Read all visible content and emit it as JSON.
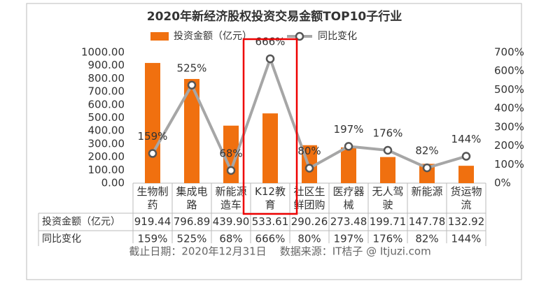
{
  "chart_data": {
    "type": "bar_line",
    "title": "2020年新经济股权投资交易金额TOP10子行业",
    "categories": [
      [
        "生物制",
        "药"
      ],
      [
        "集成电",
        "路"
      ],
      [
        "新能源",
        "造车"
      ],
      [
        "K12教",
        "育"
      ],
      [
        "社区生",
        "鲜团购"
      ],
      [
        "医疗器",
        "械"
      ],
      [
        "无人驾",
        "驶"
      ],
      [
        "新能源"
      ],
      [
        "货运物",
        "流"
      ]
    ],
    "series": [
      {
        "name": "投资金额（亿元）",
        "type": "bar",
        "color": "#f0700f",
        "values": [
          919.44,
          796.89,
          439.9,
          533.61,
          290.26,
          273.48,
          199.71,
          147.78,
          132.92
        ],
        "value_labels": [
          "919.44",
          "796.89",
          "439.90",
          "533.61",
          "290.26",
          "273.48",
          "199.71",
          "147.78",
          "132.92"
        ]
      },
      {
        "name": "同比变化",
        "type": "line",
        "color": "#a6a6a6",
        "axis": "y2",
        "values": [
          159,
          525,
          68,
          666,
          80,
          197,
          176,
          82,
          144
        ],
        "value_labels": [
          "159%",
          "525%",
          "68%",
          "666%",
          "80%",
          "197%",
          "176%",
          "82%",
          "144%"
        ]
      }
    ],
    "ylim": [
      0,
      1000
    ],
    "yticks": [
      {
        "value": 0,
        "label": "0.00"
      },
      {
        "value": 100,
        "label": "100.00"
      },
      {
        "value": 200,
        "label": "200.00"
      },
      {
        "value": 300,
        "label": "300.00"
      },
      {
        "value": 400,
        "label": "400.00"
      },
      {
        "value": 500,
        "label": "500.00"
      },
      {
        "value": 600,
        "label": "600.00"
      },
      {
        "value": 700,
        "label": "700.00"
      },
      {
        "value": 800,
        "label": "800.00"
      },
      {
        "value": 900,
        "label": "900.00"
      },
      {
        "value": 1000,
        "label": "1000.00"
      }
    ],
    "y2lim": [
      0,
      700
    ],
    "y2ticks": [
      {
        "value": 0,
        "label": "0%"
      },
      {
        "value": 100,
        "label": "100%"
      },
      {
        "value": 200,
        "label": "200%"
      },
      {
        "value": 300,
        "label": "300%"
      },
      {
        "value": 400,
        "label": "400%"
      },
      {
        "value": 500,
        "label": "500%"
      },
      {
        "value": 600,
        "label": "600%"
      },
      {
        "value": 700,
        "label": "700%"
      }
    ],
    "source": "截止日期：2020年12月31日    数据来源：IT桔子 @ Itjuzi.com"
  }
}
